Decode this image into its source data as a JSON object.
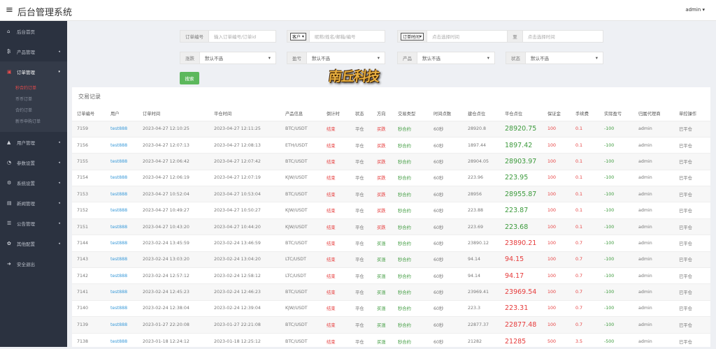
{
  "header": {
    "title": "后台管理系统",
    "user": "admin ▾"
  },
  "sidebar": {
    "items": [
      {
        "label": "后台首页",
        "icon": "home-icon",
        "glyph": "⌂"
      },
      {
        "label": "产品管理",
        "icon": "bitcoin-icon",
        "glyph": "₿",
        "arrow": true
      },
      {
        "label": "订单管理",
        "icon": "order-icon",
        "glyph": "▣",
        "arrow": true,
        "active": true,
        "sub": [
          {
            "label": "秒合约订单",
            "active": true
          },
          {
            "label": "币币订单"
          },
          {
            "label": "合约订单"
          },
          {
            "label": "新币申购订单"
          }
        ]
      },
      {
        "label": "用户管理",
        "icon": "user-icon",
        "glyph": "▲",
        "arrow": true
      },
      {
        "label": "参数设置",
        "icon": "settings-doc-icon",
        "glyph": "◔",
        "arrow": true
      },
      {
        "label": "系统设置",
        "icon": "cogs-icon",
        "glyph": "⚙",
        "arrow": true
      },
      {
        "label": "新闻管理",
        "icon": "news-icon",
        "glyph": "▤",
        "arrow": true
      },
      {
        "label": "公告管理",
        "icon": "list-icon",
        "glyph": "☰",
        "arrow": true
      },
      {
        "label": "其他配置",
        "icon": "gear-icon",
        "glyph": "✿",
        "arrow": true
      },
      {
        "label": "安全退出",
        "icon": "logout-icon",
        "glyph": "➜"
      }
    ]
  },
  "filters": {
    "order_no_label": "订单编号",
    "order_no_placeholder": "输入订单编号/订单id",
    "customer_select": "客户",
    "customer_placeholder": "昵称/姓名/邮箱/编号",
    "time_select": "订单时间",
    "time_start_placeholder": "点击选择时间",
    "to_label": "至",
    "time_end_placeholder": "点击选择时间",
    "profit_label": "涨跌",
    "profit_value": "默认不选",
    "win_label": "盈亏",
    "win_value": "默认不选",
    "product_label": "产品",
    "product_value": "默认不选",
    "status_label": "状态",
    "status_value": "默认不选",
    "search_label": "搜索"
  },
  "table": {
    "title": "交易记录",
    "columns": [
      "订单编号",
      "用户",
      "订单时间",
      "平仓时间",
      "产品信息",
      "倒计时",
      "状态",
      "方向",
      "交易类型",
      "时间点数",
      "建仓点位",
      "平仓点位",
      "保证金",
      "手续费",
      "实际盈亏",
      "归属代理商",
      "单控操作"
    ],
    "rows": [
      [
        "7159",
        "test888",
        "2023-04-27 12:10:25",
        "2023-04-27 12:11:25",
        "BTC/USDT",
        "结束",
        "平仓",
        "买跌",
        "秒合约",
        "60秒",
        "28920.8",
        "28920.75",
        "100",
        "0.1",
        "-100",
        "admin",
        "已平仓"
      ],
      [
        "7156",
        "test888",
        "2023-04-27 12:07:13",
        "2023-04-27 12:08:13",
        "ETH/USDT",
        "结束",
        "平仓",
        "买跌",
        "秒合约",
        "60秒",
        "1897.44",
        "1897.42",
        "100",
        "0.1",
        "-100",
        "admin",
        "已平仓"
      ],
      [
        "7155",
        "test888",
        "2023-04-27 12:06:42",
        "2023-04-27 12:07:42",
        "BTC/USDT",
        "结束",
        "平仓",
        "买跌",
        "秒合约",
        "60秒",
        "28904.05",
        "28903.97",
        "100",
        "0.1",
        "-100",
        "admin",
        "已平仓"
      ],
      [
        "7154",
        "test888",
        "2023-04-27 12:06:19",
        "2023-04-27 12:07:19",
        "KJW/USDT",
        "结束",
        "平仓",
        "买跌",
        "秒合约",
        "60秒",
        "223.96",
        "223.95",
        "100",
        "0.1",
        "-100",
        "admin",
        "已平仓"
      ],
      [
        "7153",
        "test888",
        "2023-04-27 10:52:04",
        "2023-04-27 10:53:04",
        "BTC/USDT",
        "结束",
        "平仓",
        "买跌",
        "秒合约",
        "60秒",
        "28956",
        "28955.87",
        "100",
        "0.1",
        "-100",
        "admin",
        "已平仓"
      ],
      [
        "7152",
        "test888",
        "2023-04-27 10:49:27",
        "2023-04-27 10:50:27",
        "KJW/USDT",
        "结束",
        "平仓",
        "买跌",
        "秒合约",
        "60秒",
        "223.88",
        "223.87",
        "100",
        "0.1",
        "-100",
        "admin",
        "已平仓"
      ],
      [
        "7151",
        "test888",
        "2023-04-27 10:43:20",
        "2023-04-27 10:44:20",
        "KJW/USDT",
        "结束",
        "平仓",
        "买跌",
        "秒合约",
        "60秒",
        "223.69",
        "223.68",
        "100",
        "0.1",
        "-100",
        "admin",
        "已平仓"
      ],
      [
        "7144",
        "test888",
        "2023-02-24 13:45:59",
        "2023-02-24 13:46:59",
        "BTC/USDT",
        "结束",
        "平仓",
        "买涨",
        "秒合约",
        "60秒",
        "23890.12",
        "23890.21",
        "100",
        "0.7",
        "-100",
        "admin",
        "已平仓"
      ],
      [
        "7143",
        "test888",
        "2023-02-24 13:03:20",
        "2023-02-24 13:04:20",
        "LTC/USDT",
        "结束",
        "平仓",
        "买涨",
        "秒合约",
        "60秒",
        "94.14",
        "94.15",
        "100",
        "0.7",
        "-100",
        "admin",
        "已平仓"
      ],
      [
        "7142",
        "test888",
        "2023-02-24 12:57:12",
        "2023-02-24 12:58:12",
        "LTC/USDT",
        "结束",
        "平仓",
        "买涨",
        "秒合约",
        "60秒",
        "94.14",
        "94.17",
        "100",
        "0.7",
        "-100",
        "admin",
        "已平仓"
      ],
      [
        "7141",
        "test888",
        "2023-02-24 12:45:23",
        "2023-02-24 12:46:23",
        "BTC/USDT",
        "结束",
        "平仓",
        "买涨",
        "秒合约",
        "60秒",
        "23969.41",
        "23969.54",
        "100",
        "0.7",
        "-100",
        "admin",
        "已平仓"
      ],
      [
        "7140",
        "test888",
        "2023-02-24 12:38:04",
        "2023-02-24 12:39:04",
        "KJW/USDT",
        "结束",
        "平仓",
        "买涨",
        "秒合约",
        "60秒",
        "223.3",
        "223.31",
        "100",
        "0.7",
        "-100",
        "admin",
        "已平仓"
      ],
      [
        "7139",
        "test888",
        "2023-01-27 22:20:08",
        "2023-01-27 22:21:08",
        "BTC/USDT",
        "结束",
        "平仓",
        "买涨",
        "秒合约",
        "60秒",
        "22877.37",
        "22877.48",
        "100",
        "0.7",
        "-100",
        "admin",
        "已平仓"
      ],
      [
        "7138",
        "test888",
        "2023-01-18 12:24:12",
        "2023-01-18 12:25:12",
        "BTC/USDT",
        "结束",
        "平仓",
        "买涨",
        "秒合约",
        "60秒",
        "21282",
        "21285",
        "500",
        "3.5",
        "-500",
        "admin",
        "已平仓"
      ]
    ]
  },
  "watermark": "南丘科技",
  "colors": {
    "sidebar": "#2b3240",
    "accent_red": "#e63b3b",
    "accent_green": "#3c9a3c",
    "link": "#3a9ad9",
    "search_button": "#5cb85c"
  }
}
